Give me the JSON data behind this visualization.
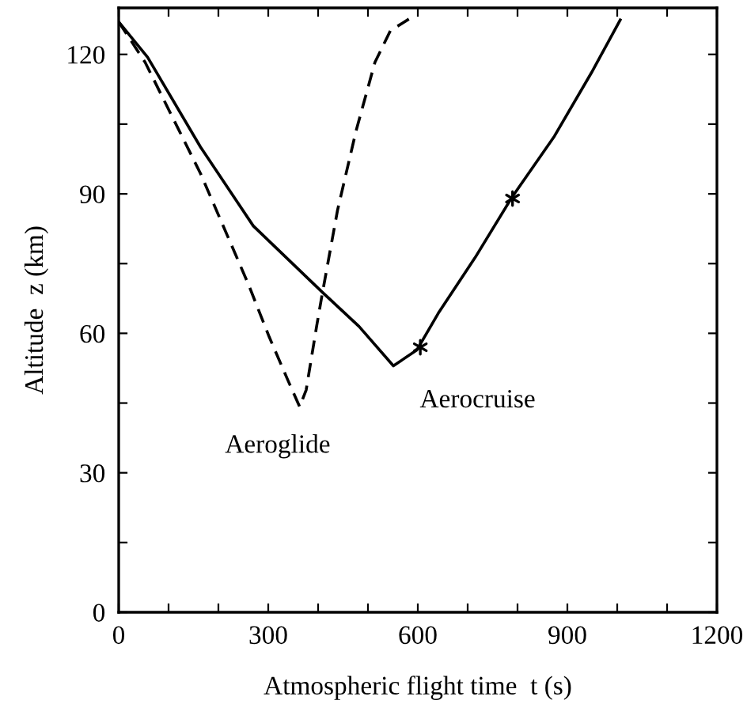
{
  "chart_data": {
    "type": "line",
    "xlabel": "Atmospheric flight time  t (s)",
    "ylabel": "Altitude  z (km)",
    "xlim": [
      0,
      1200
    ],
    "ylim": [
      0,
      130
    ],
    "xticks": [
      0,
      {
        "value": 100,
        "label": null
      },
      {
        "value": 200,
        "label": null
      },
      300,
      {
        "value": 400,
        "label": null
      },
      {
        "value": 500,
        "label": null
      },
      600,
      {
        "value": 700,
        "label": null
      },
      {
        "value": 800,
        "label": null
      },
      900,
      {
        "value": 1000,
        "label": null
      },
      {
        "value": 1100,
        "label": null
      },
      1200
    ],
    "yticks": [
      0,
      {
        "value": 15,
        "label": null
      },
      30,
      {
        "value": 45,
        "label": null
      },
      60,
      {
        "value": 75,
        "label": null
      },
      90,
      {
        "value": 105,
        "label": null
      },
      120
    ],
    "grid": false,
    "legend": false,
    "series": [
      {
        "name": "Aeroglide",
        "color": "#000000",
        "line_style": "dashed",
        "marker": "none",
        "x": [
          0,
          53,
          164,
          260,
          302,
          339,
          363,
          376,
          397,
          408,
          439,
          476,
          514,
          545,
          582
        ],
        "values": [
          127,
          118.3,
          94.4,
          70.6,
          59.2,
          50,
          44.2,
          47.8,
          61.5,
          68.3,
          86.5,
          103.5,
          118.3,
          125.1,
          127.6
        ]
      },
      {
        "name": "Aerocruise",
        "color": "#000000",
        "line_style": "solid",
        "marker": "none",
        "x": [
          0,
          58,
          164,
          270,
          408,
          482,
          551,
          598,
          641,
          715,
          789,
          874,
          948,
          1006
        ],
        "values": [
          127,
          119.4,
          100.1,
          83.1,
          68.9,
          61.5,
          53,
          56.4,
          64.3,
          76.3,
          89.3,
          102.4,
          116,
          127.4
        ]
      },
      {
        "type": "scatter",
        "color": "#000000",
        "marker": "cross",
        "x": [
          605,
          790
        ],
        "values": [
          57,
          89
        ]
      }
    ]
  }
}
